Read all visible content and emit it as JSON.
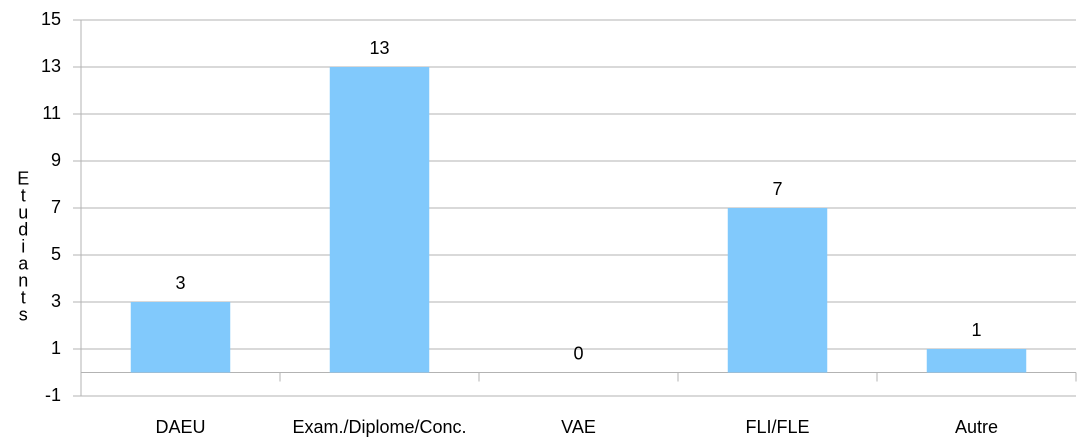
{
  "chart_data": {
    "type": "bar",
    "y_label": "Etudiants",
    "categories": [
      "DAEU",
      "Exam./Diplome/Conc.",
      "VAE",
      "FLI/FLE",
      "Autre"
    ],
    "values": [
      3,
      13,
      0,
      7,
      1
    ],
    "color": "#81c9fc",
    "ylim": [
      -1,
      15
    ],
    "yticks": [
      -1,
      1,
      3,
      5,
      7,
      9,
      11,
      13,
      15
    ],
    "grid": true
  }
}
